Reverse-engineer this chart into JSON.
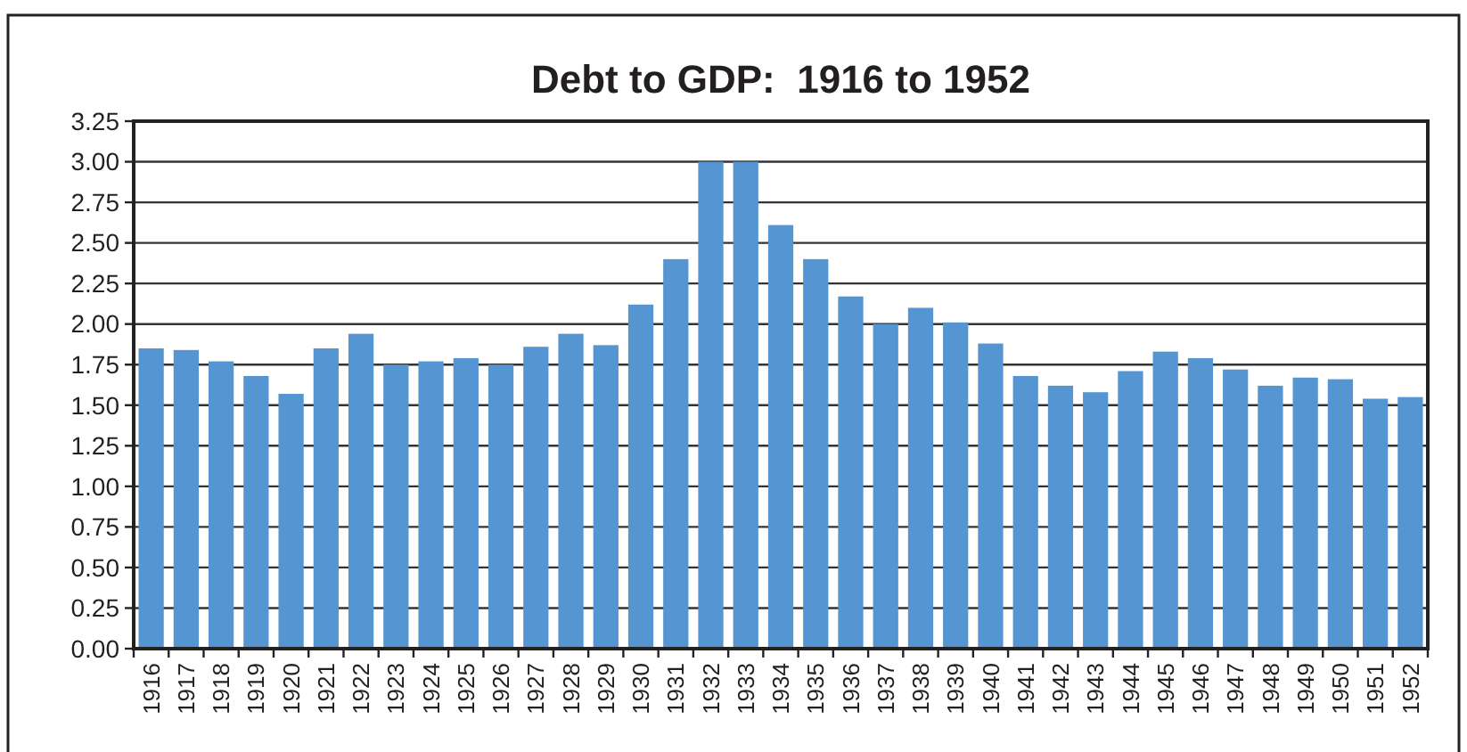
{
  "chart_data": {
    "type": "bar",
    "title": "Debt to GDP:  1916 to 1952",
    "categories": [
      "1916",
      "1917",
      "1918",
      "1919",
      "1920",
      "1921",
      "1922",
      "1923",
      "1924",
      "1925",
      "1926",
      "1927",
      "1928",
      "1929",
      "1930",
      "1931",
      "1932",
      "1933",
      "1934",
      "1935",
      "1936",
      "1937",
      "1938",
      "1939",
      "1940",
      "1941",
      "1942",
      "1943",
      "1944",
      "1945",
      "1946",
      "1947",
      "1948",
      "1949",
      "1950",
      "1951",
      "1952"
    ],
    "values": [
      1.85,
      1.84,
      1.77,
      1.68,
      1.57,
      1.85,
      1.94,
      1.75,
      1.77,
      1.79,
      1.75,
      1.86,
      1.94,
      1.87,
      2.12,
      2.4,
      3.0,
      3.0,
      2.61,
      2.4,
      2.17,
      2.0,
      2.1,
      2.01,
      1.88,
      1.68,
      1.62,
      1.58,
      1.71,
      1.83,
      1.79,
      1.72,
      1.62,
      1.67,
      1.66,
      1.54,
      1.55
    ],
    "color": "#5596d2",
    "ylim": [
      0,
      3.25
    ],
    "yticks": [
      {
        "value": 0,
        "label": "0.00"
      },
      {
        "value": 0.25,
        "label": "0.25"
      },
      {
        "value": 0.5,
        "label": "0.50"
      },
      {
        "value": 0.75,
        "label": "0.75"
      },
      {
        "value": 1,
        "label": "1.00"
      },
      {
        "value": 1.25,
        "label": "1.25"
      },
      {
        "value": 1.5,
        "label": "1.50"
      },
      {
        "value": 1.75,
        "label": "1.75"
      },
      {
        "value": 2,
        "label": "2.00"
      },
      {
        "value": 2.25,
        "label": "2.25"
      },
      {
        "value": 2.5,
        "label": "2.50"
      },
      {
        "value": 2.75,
        "label": "2.75"
      },
      {
        "value": 3,
        "label": "3.00"
      },
      {
        "value": 3.25,
        "label": "3.25"
      }
    ],
    "grid": "y"
  }
}
